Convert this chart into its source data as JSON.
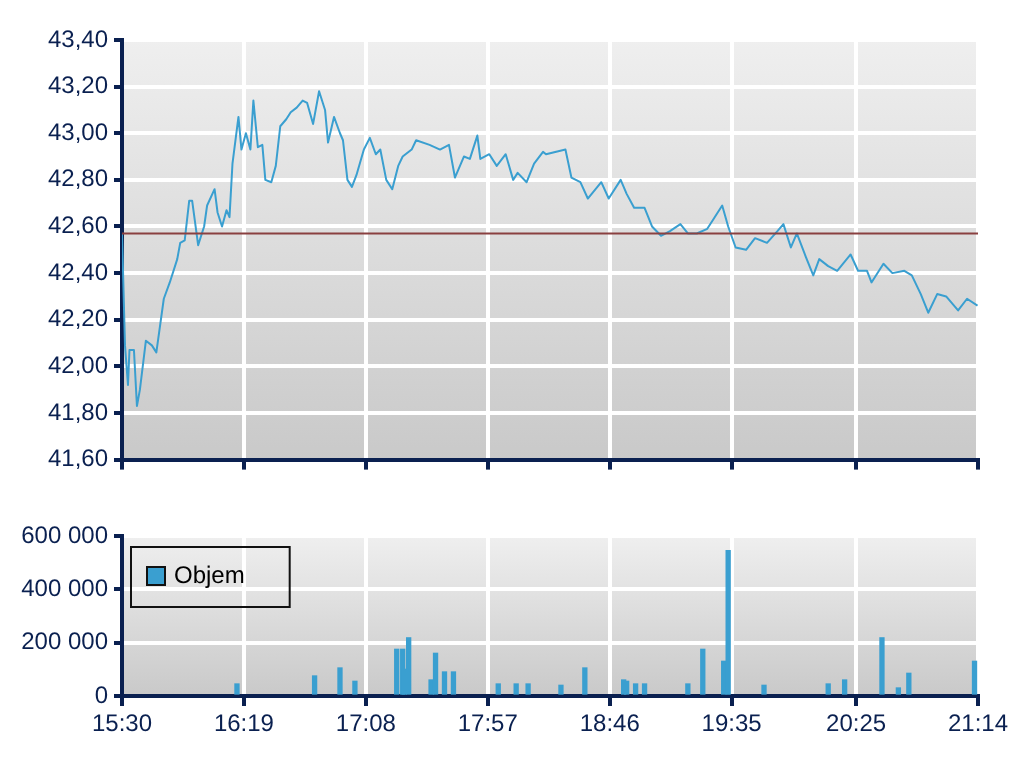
{
  "chart_data": [
    {
      "type": "line",
      "color": "#3a9fd0",
      "x": [
        15.5,
        15.52,
        15.54,
        15.55,
        15.58,
        15.6,
        15.62,
        15.66,
        15.7,
        15.73,
        15.78,
        15.82,
        15.87,
        15.89,
        15.92,
        15.95,
        15.97,
        16.01,
        16.05,
        16.07,
        16.12,
        16.14,
        16.17,
        16.2,
        16.22,
        16.24,
        16.28,
        16.3,
        16.33,
        16.36,
        16.38,
        16.41,
        16.44,
        16.46,
        16.5,
        16.53,
        16.56,
        16.6,
        16.63,
        16.67,
        16.71,
        16.74,
        16.78,
        16.82,
        16.86,
        16.88,
        16.92,
        16.96,
        16.98,
        17.01,
        17.04,
        17.07,
        17.12,
        17.16,
        17.2,
        17.23,
        17.27,
        17.31,
        17.35,
        17.38,
        17.44,
        17.47,
        17.56,
        17.63,
        17.69,
        17.73,
        17.79,
        17.83,
        17.88,
        17.9,
        17.96,
        18.01,
        18.07,
        18.12,
        18.15,
        18.21,
        18.26,
        18.32,
        18.34,
        18.47,
        18.51,
        18.57,
        18.62,
        18.71,
        18.76,
        18.84,
        18.88,
        18.93,
        19.0,
        19.05,
        19.11,
        19.17,
        19.24,
        19.29,
        19.35,
        19.42,
        19.46,
        19.52,
        19.56,
        19.61,
        19.68,
        19.74,
        19.82,
        19.89,
        19.93,
        19.98,
        20.02,
        20.08,
        20.13,
        20.17,
        20.23,
        20.29,
        20.38,
        20.43,
        20.49,
        20.52,
        20.6,
        20.66,
        20.74,
        20.79,
        20.85,
        20.9,
        20.96,
        21.02,
        21.1,
        21.16,
        21.23
      ],
      "values": [
        42.57,
        42.09,
        41.92,
        42.07,
        42.07,
        41.83,
        41.9,
        42.11,
        42.09,
        42.06,
        42.29,
        42.36,
        42.46,
        42.53,
        42.54,
        42.71,
        42.71,
        42.52,
        42.6,
        42.69,
        42.76,
        42.66,
        42.6,
        42.67,
        42.64,
        42.87,
        43.07,
        42.93,
        43.0,
        42.93,
        43.14,
        42.94,
        42.95,
        42.8,
        42.79,
        42.86,
        43.03,
        43.06,
        43.09,
        43.11,
        43.14,
        43.13,
        43.04,
        43.18,
        43.1,
        42.96,
        43.07,
        43.0,
        42.97,
        42.8,
        42.77,
        42.82,
        42.93,
        42.98,
        42.91,
        42.93,
        42.8,
        42.76,
        42.86,
        42.9,
        42.93,
        42.97,
        42.95,
        42.93,
        42.95,
        42.81,
        42.9,
        42.89,
        42.99,
        42.89,
        42.91,
        42.86,
        42.91,
        42.8,
        42.83,
        42.79,
        42.87,
        42.92,
        42.91,
        42.93,
        42.81,
        42.79,
        42.72,
        42.79,
        42.72,
        42.8,
        42.74,
        42.68,
        42.68,
        42.6,
        42.56,
        42.58,
        42.61,
        42.57,
        42.57,
        42.59,
        42.63,
        42.69,
        42.6,
        42.51,
        42.5,
        42.55,
        42.53,
        42.58,
        42.61,
        42.51,
        42.57,
        42.47,
        42.39,
        42.46,
        42.43,
        42.41,
        42.48,
        42.41,
        42.41,
        42.36,
        42.44,
        42.4,
        42.41,
        42.39,
        42.31,
        42.23,
        42.31,
        42.3,
        42.24,
        42.29,
        42.26
      ],
      "xlim": [
        15.5,
        21.2333
      ],
      "xticks": [
        {
          "value": 15.5,
          "label": null
        },
        {
          "value": 16.3167,
          "label": null
        },
        {
          "value": 17.1333,
          "label": null
        },
        {
          "value": 17.95,
          "label": null
        },
        {
          "value": 18.7667,
          "label": null
        },
        {
          "value": 19.5833,
          "label": null
        },
        {
          "value": 20.4167,
          "label": null
        },
        {
          "value": 21.2333,
          "label": null
        }
      ],
      "ylim": [
        41.6,
        43.4
      ],
      "yticks": [
        {
          "value": 41.6,
          "label": "41,60"
        },
        {
          "value": 41.8,
          "label": "41,80"
        },
        {
          "value": 42.0,
          "label": "42,00"
        },
        {
          "value": 42.2,
          "label": "42,20"
        },
        {
          "value": 42.4,
          "label": "42,40"
        },
        {
          "value": 42.6,
          "label": "42,60"
        },
        {
          "value": 42.8,
          "label": "42,80"
        },
        {
          "value": 43.0,
          "label": "43,00"
        },
        {
          "value": 43.2,
          "label": "43,20"
        },
        {
          "value": 43.4,
          "label": "43,40"
        }
      ],
      "ref_lines": [
        {
          "axis": "y",
          "value": 42.57,
          "color": "#8a4040"
        }
      ],
      "grid": true,
      "tick_labels": "y"
    },
    {
      "type": "bar",
      "x": [
        16.27,
        16.79,
        16.96,
        17.06,
        17.34,
        17.38,
        17.39,
        17.42,
        17.57,
        17.6,
        17.66,
        17.72,
        18.02,
        18.14,
        18.22,
        18.44,
        18.6,
        18.86,
        18.88,
        18.94,
        19.0,
        19.29,
        19.39,
        19.53,
        19.56,
        19.8,
        20.23,
        20.34,
        20.59,
        20.7,
        20.77,
        21.21
      ],
      "series": [
        {
          "name": "Objem",
          "color": "#3a9fd0",
          "values": [
            45000,
            75000,
            105000,
            55000,
            175000,
            175000,
            100000,
            218000,
            60000,
            160000,
            90000,
            90000,
            45000,
            45000,
            45000,
            40000,
            105000,
            60000,
            55000,
            45000,
            45000,
            45000,
            175000,
            130000,
            545000,
            40000,
            45000,
            60000,
            218000,
            30000,
            85000,
            130000
          ]
        }
      ],
      "xlim": [
        15.5,
        21.2333
      ],
      "xticks": [
        {
          "value": 15.5,
          "label": "15:30"
        },
        {
          "value": 16.3167,
          "label": "16:19"
        },
        {
          "value": 17.1333,
          "label": "17:08"
        },
        {
          "value": 17.95,
          "label": "17:57"
        },
        {
          "value": 18.7667,
          "label": "18:46"
        },
        {
          "value": 19.5833,
          "label": "19:35"
        },
        {
          "value": 20.4167,
          "label": "20:25"
        },
        {
          "value": 21.2333,
          "label": "21:14"
        }
      ],
      "ylim": [
        0,
        600000
      ],
      "yticks": [
        {
          "value": 0,
          "label": "0"
        },
        {
          "value": 200000,
          "label": "200 000"
        },
        {
          "value": 400000,
          "label": "400 000"
        },
        {
          "value": 600000,
          "label": "600 000"
        }
      ],
      "grid": true,
      "legend": "top left"
    }
  ]
}
